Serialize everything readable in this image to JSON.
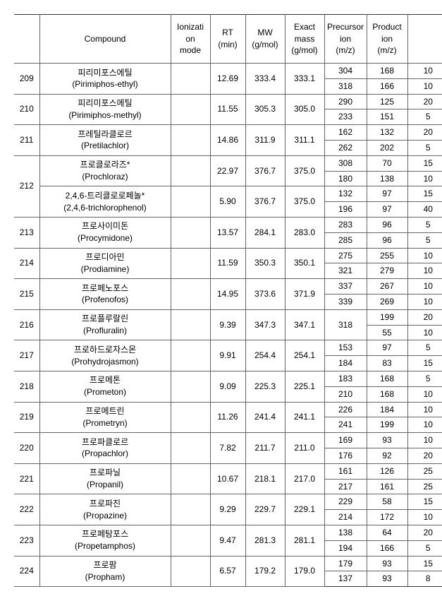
{
  "table": {
    "headers": {
      "idx": "",
      "compound": "Compound",
      "ion": "Ionizati\non\nmode",
      "rt": "RT\n(min)",
      "mw": "MW\n(g/mol)",
      "mass": "Exact\nmass\n(g/mol)",
      "prec": "Precursor\nion\n(m/z)",
      "prod": "Product\nion\n(m/z)"
    },
    "rows": [
      {
        "idx": "209",
        "compound_kr": "피리미포스에틸",
        "compound_en": "(Pirimiphos-ethyl)",
        "ion": "",
        "rt": "12.69",
        "mw": "333.4",
        "mass": "333.1",
        "sub": [
          {
            "prec": "304",
            "prod": "168",
            "ce": "10"
          },
          {
            "prec": "318",
            "prod": "166",
            "ce": "10"
          }
        ]
      },
      {
        "idx": "210",
        "compound_kr": "피리미포스메틸",
        "compound_en": "(Pirimiphos-methyl)",
        "ion": "",
        "rt": "11.55",
        "mw": "305.3",
        "mass": "305.0",
        "sub": [
          {
            "prec": "290",
            "prod": "125",
            "ce": "20"
          },
          {
            "prec": "233",
            "prod": "151",
            "ce": "5"
          }
        ]
      },
      {
        "idx": "211",
        "compound_kr": "프레틸라클로르",
        "compound_en": "(Pretilachlor)",
        "ion": "",
        "rt": "14.86",
        "mw": "311.9",
        "mass": "311.1",
        "sub": [
          {
            "prec": "162",
            "prod": "132",
            "ce": "20"
          },
          {
            "prec": "262",
            "prod": "202",
            "ce": "5"
          }
        ]
      },
      {
        "idx": "212",
        "compounds": [
          {
            "compound_kr": "프로클로라즈*",
            "compound_en": "(Prochloraz)",
            "ion": "",
            "rt": "22.97",
            "mw": "376.7",
            "mass": "375.0",
            "sub": [
              {
                "prec": "308",
                "prod": "70",
                "ce": "15"
              },
              {
                "prec": "180",
                "prod": "138",
                "ce": "10"
              }
            ]
          },
          {
            "compound_kr": "2,4,6-트리클로로페놀*",
            "compound_en": "(2,4,6-trichlorophenol)",
            "ion": "",
            "rt": "5.90",
            "mw": "376.7",
            "mass": "375.0",
            "sub": [
              {
                "prec": "132",
                "prod": "97",
                "ce": "15"
              },
              {
                "prec": "196",
                "prod": "97",
                "ce": "40"
              }
            ]
          }
        ]
      },
      {
        "idx": "213",
        "compound_kr": "프로사이미돈",
        "compound_en": "(Procymidone)",
        "ion": "",
        "rt": "13.57",
        "mw": "284.1",
        "mass": "283.0",
        "sub": [
          {
            "prec": "283",
            "prod": "96",
            "ce": "5"
          },
          {
            "prec": "285",
            "prod": "96",
            "ce": "5"
          }
        ]
      },
      {
        "idx": "214",
        "compound_kr": "프로디아민",
        "compound_en": "(Prodiamine)",
        "ion": "",
        "rt": "11.59",
        "mw": "350.3",
        "mass": "350.1",
        "sub": [
          {
            "prec": "275",
            "prod": "255",
            "ce": "10"
          },
          {
            "prec": "321",
            "prod": "279",
            "ce": "10"
          }
        ]
      },
      {
        "idx": "215",
        "compound_kr": "프로페노포스",
        "compound_en": "(Profenofos)",
        "ion": "",
        "rt": "14.95",
        "mw": "373.6",
        "mass": "371.9",
        "sub": [
          {
            "prec": "337",
            "prod": "267",
            "ce": "10"
          },
          {
            "prec": "339",
            "prod": "269",
            "ce": "10"
          }
        ]
      },
      {
        "idx": "216",
        "compound_kr": "프로플루랄린",
        "compound_en": "(Profluralin)",
        "ion": "",
        "rt": "9.39",
        "mw": "347.3",
        "mass": "347.1",
        "mass_span": true,
        "prec_merged": "318",
        "sub": [
          {
            "prod": "199",
            "ce": "20"
          },
          {
            "prod": "55",
            "ce": "10"
          }
        ]
      },
      {
        "idx": "217",
        "compound_kr": "프로하드로자스몬",
        "compound_en": "(Prohydrojasmon)",
        "ion": "",
        "rt": "9.91",
        "mw": "254.4",
        "mass": "254.1",
        "sub": [
          {
            "prec": "153",
            "prod": "97",
            "ce": "5"
          },
          {
            "prec": "184",
            "prod": "83",
            "ce": "15"
          }
        ]
      },
      {
        "idx": "218",
        "compound_kr": "프로메톤",
        "compound_en": "(Prometon)",
        "ion": "",
        "rt": "9.09",
        "mw": "225.3",
        "mass": "225.1",
        "sub": [
          {
            "prec": "183",
            "prod": "168",
            "ce": "5"
          },
          {
            "prec": "210",
            "prod": "168",
            "ce": "10"
          }
        ]
      },
      {
        "idx": "219",
        "compound_kr": "프로메트린",
        "compound_en": "(Prometryn)",
        "ion": "",
        "rt": "11.26",
        "mw": "241.4",
        "mass": "241.1",
        "sub": [
          {
            "prec": "226",
            "prod": "184",
            "ce": "10"
          },
          {
            "prec": "241",
            "prod": "199",
            "ce": "10"
          }
        ]
      },
      {
        "idx": "220",
        "compound_kr": "프로파클로르",
        "compound_en": "(Propachlor)",
        "ion": "",
        "rt": "7.82",
        "mw": "211.7",
        "mass": "211.0",
        "sub": [
          {
            "prec": "169",
            "prod": "93",
            "ce": "10"
          },
          {
            "prec": "176",
            "prod": "92",
            "ce": "20"
          }
        ]
      },
      {
        "idx": "221",
        "compound_kr": "프로파닐",
        "compound_en": "(Propanil)",
        "ion": "",
        "rt": "10.67",
        "mw": "218.1",
        "mass": "217.0",
        "sub": [
          {
            "prec": "161",
            "prod": "126",
            "ce": "25"
          },
          {
            "prec": "217",
            "prod": "161",
            "ce": "25"
          }
        ]
      },
      {
        "idx": "222",
        "compound_kr": "프로파진",
        "compound_en": "(Propazine)",
        "ion": "",
        "rt": "9.29",
        "mw": "229.7",
        "mass": "229.1",
        "sub": [
          {
            "prec": "229",
            "prod": "58",
            "ce": "15"
          },
          {
            "prec": "214",
            "prod": "172",
            "ce": "10"
          }
        ]
      },
      {
        "idx": "223",
        "compound_kr": "프로페탐포스",
        "compound_en": "(Propetamphos)",
        "ion": "",
        "rt": "9.47",
        "mw": "281.3",
        "mass": "281.1",
        "sub": [
          {
            "prec": "138",
            "prod": "64",
            "ce": "20"
          },
          {
            "prec": "194",
            "prod": "166",
            "ce": "5"
          }
        ]
      },
      {
        "idx": "224",
        "compound_kr": "프로팜",
        "compound_en": "(Propham)",
        "ion": "",
        "rt": "6.57",
        "mw": "179.2",
        "mass": "179.0",
        "sub": [
          {
            "prec": "179",
            "prod": "93",
            "ce": "15"
          },
          {
            "prec": "137",
            "prod": "93",
            "ce": "8"
          }
        ]
      }
    ]
  }
}
